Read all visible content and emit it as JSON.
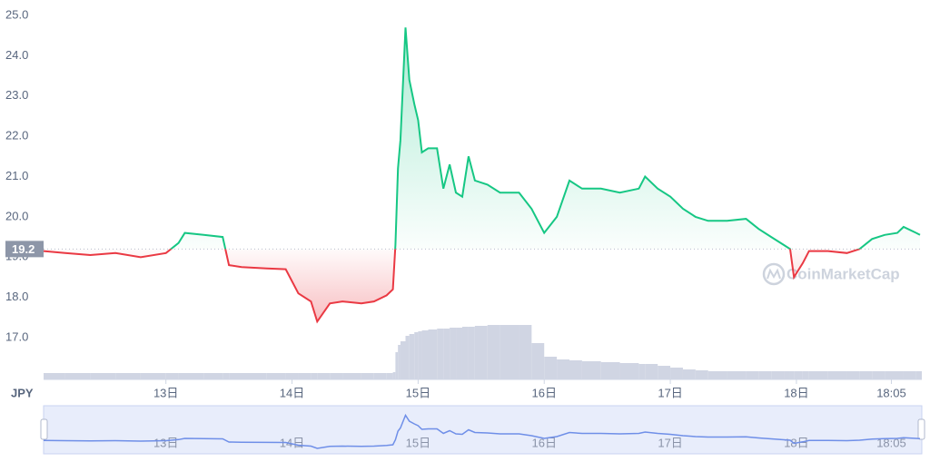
{
  "chart_data": {
    "type": "line",
    "currency": "JPY",
    "watermark": "CoinMarketCap",
    "baseline": 19.2,
    "up_color": "#16c784",
    "down_color": "#ea3943",
    "xlim": [
      12.03,
      18.98
    ],
    "xticks": [
      {
        "value": 13,
        "label": "13日"
      },
      {
        "value": 14,
        "label": "14日"
      },
      {
        "value": 15,
        "label": "15日"
      },
      {
        "value": 16,
        "label": "16日"
      },
      {
        "value": 17,
        "label": "17日"
      },
      {
        "value": 18,
        "label": "18日"
      },
      {
        "value": 18.753,
        "label": "18:05"
      }
    ],
    "ylim": [
      17,
      25
    ],
    "yticks": [
      {
        "value": 17,
        "label": "17.0"
      },
      {
        "value": 18,
        "label": "18.0"
      },
      {
        "value": 19,
        "label": "19.0"
      },
      {
        "value": 20,
        "label": "20.0"
      },
      {
        "value": 21,
        "label": "21.0"
      },
      {
        "value": 22,
        "label": "22.0"
      },
      {
        "value": 23,
        "label": "23.0"
      },
      {
        "value": 24,
        "label": "24.0"
      },
      {
        "value": 25,
        "label": "25.0"
      }
    ],
    "x": [
      12.03,
      12.2,
      12.4,
      12.6,
      12.8,
      13.0,
      13.1,
      13.15,
      13.3,
      13.45,
      13.5,
      13.6,
      13.8,
      13.95,
      14.05,
      14.15,
      14.2,
      14.3,
      14.4,
      14.55,
      14.65,
      14.75,
      14.8,
      14.82,
      14.84,
      14.86,
      14.9,
      14.93,
      14.97,
      15.0,
      15.03,
      15.08,
      15.15,
      15.2,
      15.25,
      15.3,
      15.35,
      15.4,
      15.45,
      15.55,
      15.65,
      15.8,
      15.9,
      16.0,
      16.1,
      16.2,
      16.3,
      16.45,
      16.6,
      16.75,
      16.8,
      16.9,
      17.0,
      17.1,
      17.2,
      17.3,
      17.45,
      17.6,
      17.7,
      17.8,
      17.9,
      17.95,
      17.98,
      18.05,
      18.1,
      18.25,
      18.4,
      18.5,
      18.6,
      18.7,
      18.8,
      18.85,
      18.95,
      18.98
    ],
    "values": [
      19.15,
      19.1,
      19.05,
      19.1,
      19.0,
      19.1,
      19.35,
      19.6,
      19.55,
      19.5,
      18.8,
      18.75,
      18.72,
      18.7,
      18.1,
      17.9,
      17.4,
      17.85,
      17.9,
      17.85,
      17.9,
      18.05,
      18.2,
      19.3,
      21.2,
      21.9,
      24.7,
      23.4,
      22.8,
      22.4,
      21.6,
      21.7,
      21.7,
      20.7,
      21.3,
      20.6,
      20.5,
      21.5,
      20.9,
      20.8,
      20.6,
      20.6,
      20.2,
      19.6,
      20.0,
      20.9,
      20.7,
      20.7,
      20.6,
      20.7,
      21.0,
      20.7,
      20.5,
      20.2,
      20.0,
      19.9,
      19.9,
      19.95,
      19.7,
      19.5,
      19.3,
      19.2,
      18.5,
      18.85,
      19.15,
      19.15,
      19.1,
      19.2,
      19.45,
      19.55,
      19.6,
      19.75,
      19.6,
      19.55
    ],
    "volume": [
      7,
      7,
      7,
      7,
      7,
      7,
      7,
      7,
      7,
      7,
      7,
      7,
      7,
      7,
      7,
      7,
      7,
      7,
      7,
      7,
      7,
      7,
      8,
      30,
      38,
      42,
      48,
      50,
      52,
      53,
      54,
      55,
      56,
      56,
      57,
      57,
      58,
      58,
      59,
      60,
      60,
      60,
      40,
      25,
      22,
      21,
      20,
      19,
      18,
      17,
      17,
      15,
      13,
      11,
      10,
      9,
      9,
      9,
      9,
      9,
      9,
      9,
      9,
      9,
      9,
      9,
      9,
      9,
      9,
      9,
      9,
      9,
      9,
      9
    ]
  }
}
